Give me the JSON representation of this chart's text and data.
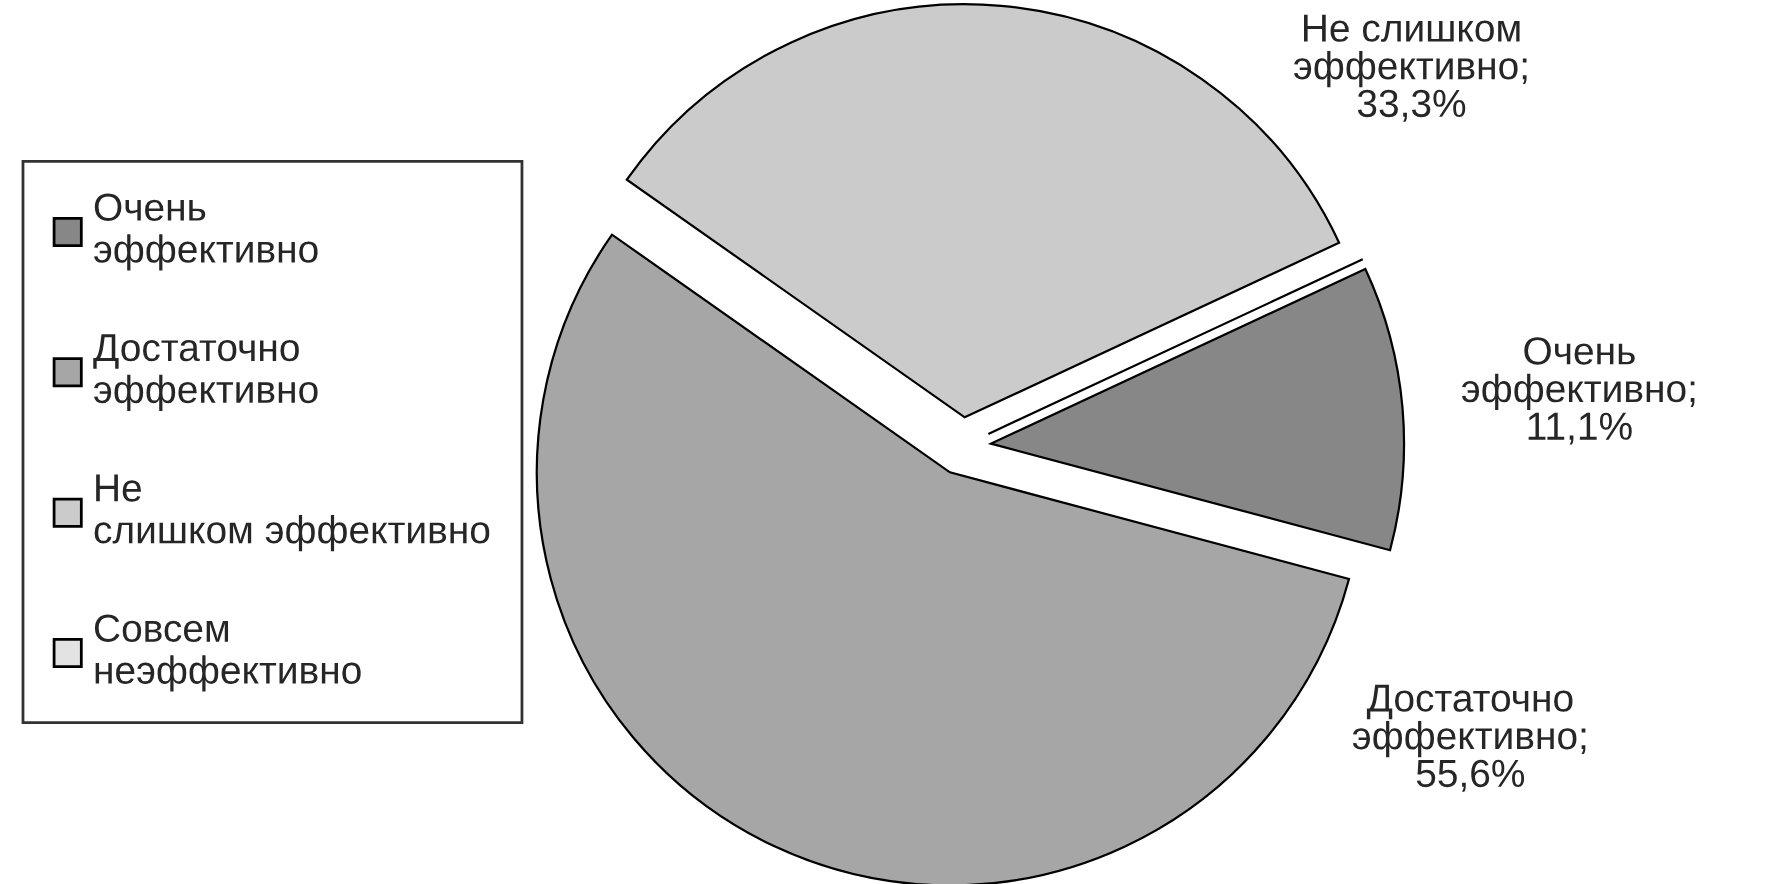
{
  "chart_data": {
    "type": "pie",
    "categories": [
      "Очень эффективно",
      "Достаточно эффективно",
      "Не слишком эффективно",
      "Совсем неэффективно"
    ],
    "values": [
      11.1,
      55.6,
      33.3,
      0
    ],
    "value_labels": [
      "Очень эффективно; 11,1%",
      "Достаточно эффективно; 55,6%",
      "Не слишком эффективно; 33,3%",
      null
    ],
    "colors": [
      "#878787",
      "#a6a6a6",
      "#cbcbcb",
      "#e3e3e3"
    ],
    "legend": "left"
  }
}
